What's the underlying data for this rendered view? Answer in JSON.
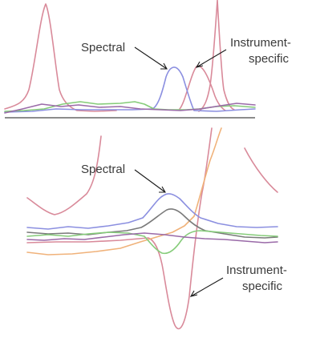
{
  "colors": {
    "pink": "#d98a9a",
    "blue": "#8b8fe0",
    "green": "#86cc7a",
    "orange": "#f0b27a",
    "gray": "#7a7a7a",
    "purple": "#9a6aa8",
    "baseline": "#8c8c8c"
  },
  "chart_data": [
    {
      "type": "line",
      "title": "",
      "annotations": [
        {
          "text": "Spectral",
          "points_to": "blue peak"
        },
        {
          "text": "Instrument-specific",
          "lines": [
            "Instrument-",
            "specific"
          ],
          "points_to": "pink peak"
        }
      ],
      "series": [
        {
          "color": "pink",
          "description": "tall narrow peaks at left and right, plus right-shifted small peak"
        },
        {
          "color": "blue",
          "description": "peak near the middle-right"
        },
        {
          "color": "green",
          "description": "low baseline noise"
        },
        {
          "color": "purple",
          "description": "low baseline noise"
        }
      ]
    },
    {
      "type": "line",
      "title": "",
      "annotations": [
        {
          "text": "Spectral",
          "points_to": "blue hump"
        },
        {
          "text": "Instrument-specific",
          "lines": [
            "Instrument-",
            "specific"
          ],
          "points_to": "pink dip"
        }
      ],
      "series": [
        {
          "color": "pink",
          "description": "large positive hump then deep negative dip"
        },
        {
          "color": "blue",
          "description": "positive hump"
        },
        {
          "color": "gray",
          "description": "smaller positive hump"
        },
        {
          "color": "green",
          "description": "small negative dip"
        },
        {
          "color": "orange",
          "description": "rise to the right"
        },
        {
          "color": "purple",
          "description": "baseline noise"
        }
      ]
    }
  ]
}
